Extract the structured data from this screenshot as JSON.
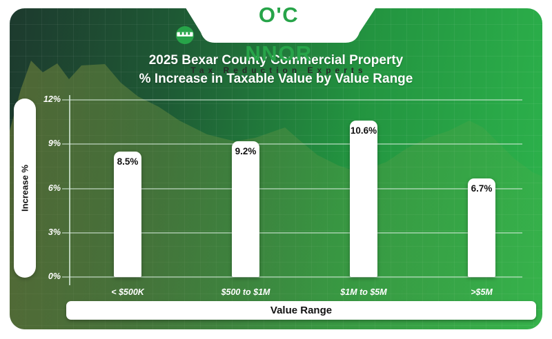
{
  "logo": {
    "word_prefix": "O'C",
    "word_suffix": "NNOR",
    "full_name": "O'CONNOR",
    "tagline": "Tax Reduction Experts",
    "brand_green": "#27a449",
    "tagline_color": "#2a2a2a"
  },
  "title": {
    "line1": "2025 Bexar County Commercial Property",
    "line2": "% Increase in Taxable Value by Value Range"
  },
  "chart_data": {
    "type": "bar",
    "title": "2025 Bexar County Commercial Property % Increase in Taxable Value by Value Range",
    "categories": [
      "< $500K",
      "$500 to $1M",
      "$1M to $5M",
      ">$5M"
    ],
    "values": [
      8.5,
      9.2,
      10.6,
      6.7
    ],
    "value_labels": [
      "8.5%",
      "9.2%",
      "10.6%",
      "6.7%"
    ],
    "xlabel": "Value Range",
    "ylabel": "Increase %",
    "ylim": [
      0,
      12
    ],
    "ytick_values": [
      0,
      3,
      6,
      9,
      12
    ],
    "ytick_labels": [
      "0%",
      "3%",
      "6%",
      "9%",
      "12%"
    ],
    "grid": true,
    "legend": "none",
    "bar_color": "#ffffff",
    "label_color": "#101010",
    "background": "green-gradient"
  },
  "colors": {
    "panel_dark": "#1d3a2e",
    "panel_mid": "#239440",
    "panel_bright": "#2db44c",
    "gridline": "rgba(222,240,227,0.5)",
    "page_background": "#ffffff"
  }
}
